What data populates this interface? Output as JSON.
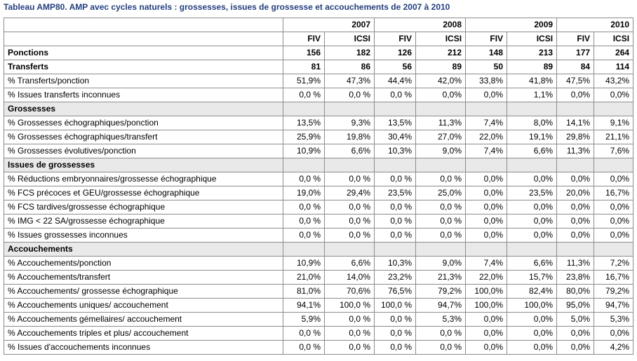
{
  "title": "Tableau AMP80. AMP avec cycles naturels : grossesses, issues de grossesse et accouchements de 2007 à 2010",
  "years": [
    "2007",
    "2008",
    "2009",
    "2010"
  ],
  "subheaders": [
    "FIV",
    "ICSI",
    "FIV",
    "ICSI",
    "FIV",
    "ICSI",
    "FIV",
    "ICSI"
  ],
  "rows": [
    {
      "type": "bold",
      "label": "Ponctions",
      "values": [
        "156",
        "182",
        "126",
        "212",
        "148",
        "213",
        "177",
        "264"
      ]
    },
    {
      "type": "bold",
      "label": "Transferts",
      "values": [
        "81",
        "86",
        "56",
        "89",
        "50",
        "89",
        "84",
        "114"
      ]
    },
    {
      "type": "data",
      "label": "% Transferts/ponction",
      "values": [
        "51,9%",
        "47,3%",
        "44,4%",
        "42,0%",
        "33,8%",
        "41,8%",
        "47,5%",
        "43,2%"
      ]
    },
    {
      "type": "data",
      "label": "% Issues transferts inconnues",
      "values": [
        "0,0 %",
        "0,0 %",
        "0,0 %",
        "0,0%",
        "0,0%",
        "1,1%",
        "0,0%",
        "0,0%"
      ]
    },
    {
      "type": "section",
      "label": "Grossesses"
    },
    {
      "type": "data",
      "label": "% Grossesses échographiques/ponction",
      "values": [
        "13,5%",
        "9,3%",
        "13,5%",
        "11,3%",
        "7,4%",
        "8,0%",
        "14,1%",
        "9,1%"
      ]
    },
    {
      "type": "data",
      "label": "% Grossesses échographiques/transfert",
      "values": [
        "25,9%",
        "19,8%",
        "30,4%",
        "27,0%",
        "22,0%",
        "19,1%",
        "29,8%",
        "21,1%"
      ]
    },
    {
      "type": "data",
      "label": "% Grossesses évolutives/ponction",
      "values": [
        "10,9%",
        "6,6%",
        "10,3%",
        "9,0%",
        "7,4%",
        "6,6%",
        "11,3%",
        "7,6%"
      ]
    },
    {
      "type": "section",
      "label": "Issues de grossesses"
    },
    {
      "type": "data",
      "label": "% Réductions embryonnaires/grossesse échographique",
      "values": [
        "0,0 %",
        "0,0 %",
        "0,0 %",
        "0,0 %",
        "0,0%",
        "0,0%",
        "0,0%",
        "0,0%"
      ]
    },
    {
      "type": "data",
      "label": "% FCS précoces et GEU/grossesse échographique",
      "values": [
        "19,0%",
        "29,4%",
        "23,5%",
        "25,0%",
        "0,0%",
        "23,5%",
        "20,0%",
        "16,7%"
      ]
    },
    {
      "type": "data",
      "label": "% FCS tardives/grossesse échographique",
      "values": [
        "0,0 %",
        "0,0 %",
        "0,0 %",
        "0,0 %",
        "0,0%",
        "0,0%",
        "0,0%",
        "0,0%"
      ]
    },
    {
      "type": "data",
      "label": "% IMG < 22 SA/grossesse échographique",
      "values": [
        "0,0 %",
        "0,0 %",
        "0,0 %",
        "0,0 %",
        "0,0%",
        "0,0%",
        "0,0%",
        "0,0%"
      ]
    },
    {
      "type": "data",
      "label": "% Issues grossesses inconnues",
      "values": [
        "0,0 %",
        "0,0 %",
        "0,0 %",
        "0,0 %",
        "0,0%",
        "0,0%",
        "0,0%",
        "0,0%"
      ]
    },
    {
      "type": "section",
      "label": "Accouchements"
    },
    {
      "type": "data",
      "label": "% Accouchements/ponction",
      "values": [
        "10,9%",
        "6,6%",
        "10,3%",
        "9,0%",
        "7,4%",
        "6,6%",
        "11,3%",
        "7,2%"
      ]
    },
    {
      "type": "data",
      "label": "% Accouchements/transfert",
      "values": [
        "21,0%",
        "14,0%",
        "23,2%",
        "21,3%",
        "22,0%",
        "15,7%",
        "23,8%",
        "16,7%"
      ]
    },
    {
      "type": "data",
      "label": "% Accouchements/ grossesse échographique",
      "values": [
        "81,0%",
        "70,6%",
        "76,5%",
        "79,2%",
        "100,0%",
        "82,4%",
        "80,0%",
        "79,2%"
      ]
    },
    {
      "type": "data",
      "label": "% Accouchements uniques/ accouchement",
      "values": [
        "94,1%",
        "100,0 %",
        "100,0 %",
        "94,7%",
        "100,0%",
        "100,0%",
        "95,0%",
        "94,7%"
      ]
    },
    {
      "type": "data",
      "label": "% Accouchements gémellaires/ accouchement",
      "values": [
        "5,9%",
        "0,0 %",
        "0,0 %",
        "5,3%",
        "0,0%",
        "0,0%",
        "5,0%",
        "5,3%"
      ]
    },
    {
      "type": "data",
      "label": "% Accouchements triples et plus/ accouchement",
      "values": [
        "0,0 %",
        "0,0 %",
        "0,0 %",
        "0,0 %",
        "0,0%",
        "0,0%",
        "0,0%",
        "0,0%"
      ]
    },
    {
      "type": "data",
      "label": "% Issues d'accouchements inconnues",
      "values": [
        "0,0 %",
        "0,0 %",
        "0,0 %",
        "0,0 %",
        "0,0%",
        "0,0%",
        "0,0%",
        "4,2%"
      ]
    }
  ]
}
